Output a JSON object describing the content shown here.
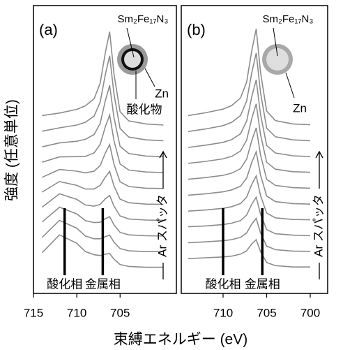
{
  "chart_data": [
    {
      "type": "line",
      "panel_label": "(a)",
      "color": "#8c8c8c",
      "xlabel": "束縛エネルギー (eV)",
      "ylabel": "強度 (任意単位)",
      "xlim": [
        715,
        698.5
      ],
      "xticks": [
        715,
        710,
        705
      ],
      "ylim": [
        0,
        100
      ],
      "x": [
        714,
        712,
        710,
        709,
        708,
        707.3,
        706.7,
        706.2,
        705.7,
        705,
        704,
        702,
        700
      ],
      "series": [
        {
          "values": [
            13.3,
            19.7,
            16.7,
            13.7,
            12.6,
            12.3,
            12.8,
            13,
            11,
            9.1,
            8.4,
            8.1,
            8.1
          ]
        },
        {
          "values": [
            18.8,
            24.9,
            22.1,
            19.3,
            18.3,
            18.3,
            19.1,
            19.6,
            17.1,
            14.8,
            14,
            13.7,
            13.7
          ]
        },
        {
          "values": [
            24.3,
            29.6,
            27.2,
            24.8,
            24.1,
            24.2,
            25.5,
            26.2,
            23.3,
            20.6,
            19.7,
            19.4,
            19.3
          ]
        },
        {
          "values": [
            29.6,
            34.4,
            32.4,
            30.4,
            30,
            30.6,
            32.6,
            33.8,
            30,
            26.5,
            25.4,
            25,
            24.9
          ]
        },
        {
          "values": [
            35,
            38.8,
            37.4,
            36.1,
            36.1,
            37.4,
            40.4,
            42.4,
            37.2,
            32.5,
            31.2,
            30.7,
            30.6
          ]
        },
        {
          "values": [
            40.3,
            43.1,
            42.5,
            41.9,
            42.5,
            44.5,
            49,
            52,
            45,
            38.7,
            37,
            36.4,
            36.3
          ]
        },
        {
          "values": [
            45.7,
            47.6,
            47.7,
            47.8,
            49,
            52.1,
            58.4,
            62.6,
            53.4,
            45.1,
            42.9,
            42.2,
            42
          ]
        },
        {
          "values": [
            51.2,
            52.6,
            53.2,
            53.9,
            55.6,
            59.6,
            67.7,
            73.2,
            61.7,
            51.4,
            48.8,
            47.9,
            47.7
          ]
        },
        {
          "values": [
            56.8,
            58,
            59,
            60,
            62.2,
            67.2,
            77.1,
            83.8,
            70.1,
            57.8,
            54.7,
            53.7,
            53.4
          ]
        },
        {
          "values": [
            62.4,
            63.3,
            64.6,
            65.9,
            68.4,
            74,
            84.9,
            92.4,
            77.3,
            63.8,
            60.5,
            59.4,
            59
          ]
        }
      ],
      "markers": [
        {
          "label": "酸化相",
          "x": 711.4
        },
        {
          "label": "金属相",
          "x": 707
        }
      ],
      "sputter_label": "Ar スパッタ",
      "labels": {
        "core": "Sm₂Fe₁₇N₃",
        "shell": "Zn",
        "oxide": "酸化物"
      }
    },
    {
      "type": "line",
      "panel_label": "(b)",
      "color": "#8c8c8c",
      "xlim": [
        714.8,
        698
      ],
      "xticks": [
        710,
        705,
        700
      ],
      "ylim": [
        0,
        100
      ],
      "x": [
        714,
        712,
        710,
        709,
        708,
        707.3,
        706.7,
        706.2,
        705.7,
        705,
        704,
        702,
        700
      ],
      "series": [
        {
          "values": [
            11.2,
            11.5,
            11.8,
            12.1,
            12.8,
            14,
            16.5,
            18,
            13.7,
            9.8,
            8.7,
            8.2,
            8.2
          ]
        },
        {
          "values": [
            16.9,
            17.2,
            17.6,
            18,
            18.8,
            20.4,
            23.6,
            25.6,
            20.4,
            15.7,
            14.4,
            13.9,
            13.8
          ]
        },
        {
          "values": [
            22.6,
            22.9,
            23.4,
            23.9,
            24.8,
            26.8,
            30.7,
            33.2,
            27.1,
            21.6,
            20.1,
            19.6,
            19.4
          ]
        },
        {
          "values": [
            28.2,
            28.6,
            29.2,
            29.8,
            30.9,
            33.2,
            37.8,
            40.8,
            33.8,
            27.5,
            25.8,
            25.2,
            25.1
          ]
        },
        {
          "values": [
            33.9,
            34.4,
            35.1,
            35.8,
            37.1,
            40,
            45.7,
            49.4,
            41.1,
            33.6,
            31.6,
            30.9,
            30.7
          ]
        },
        {
          "values": [
            39.6,
            40.2,
            41,
            41.8,
            43.4,
            46.8,
            53.5,
            58,
            48.3,
            39.6,
            37.4,
            36.6,
            36.4
          ]
        },
        {
          "values": [
            45.3,
            46,
            46.9,
            47.8,
            49.7,
            53.6,
            61.4,
            66.6,
            55.6,
            45.7,
            43.2,
            42.3,
            42.1
          ]
        },
        {
          "values": [
            51,
            51.8,
            52.8,
            53.8,
            55.9,
            60.4,
            69.2,
            75.2,
            62.8,
            51.7,
            49,
            48,
            47.7
          ]
        },
        {
          "values": [
            56.7,
            57.6,
            58.8,
            60,
            62.4,
            67.6,
            77.8,
            84.8,
            70.6,
            57.9,
            54.8,
            53.7,
            53.4
          ]
        },
        {
          "values": [
            62.4,
            63.4,
            64.7,
            66,
            68.7,
            74.4,
            85.7,
            93.4,
            77.9,
            64,
            60.6,
            59.4,
            59.1
          ]
        }
      ],
      "markers": [
        {
          "label": "酸化相",
          "x": 710
        },
        {
          "label": "金属相",
          "x": 705.5
        }
      ],
      "sputter_label": "Ar スパッタ",
      "labels": {
        "core": "Sm₂Fe₁₇N₃",
        "shell": "Zn"
      }
    }
  ]
}
